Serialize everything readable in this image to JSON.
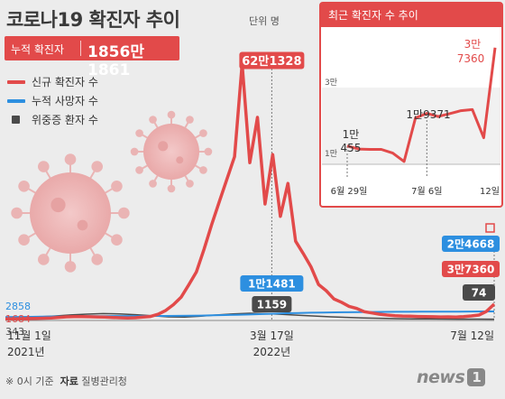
{
  "header": {
    "title": "코로나19 확진자 추이",
    "unit": "단위 명",
    "cumulative_label": "누적 확진자",
    "cumulative_value": "1856만1861"
  },
  "legend": [
    {
      "label": "신규 확진자 수",
      "color": "#e24a4a",
      "shape": "line"
    },
    {
      "label": "누적 사망자 수",
      "color": "#2d8fe0",
      "shape": "line"
    },
    {
      "label": "위중증 환자 수",
      "color": "#4a4a4a",
      "shape": "square"
    }
  ],
  "footer": {
    "note": "※ 0시 기준",
    "source_label": "자료",
    "source_value": "질병관리청"
  },
  "logo": {
    "text": "news",
    "number": "1"
  },
  "chart_data": [
    {
      "type": "line",
      "x_tick_labels": [
        {
          "line1": "11월 1일",
          "line2": "2021년"
        },
        {
          "line1": "3월 17일",
          "line2": "2022년"
        },
        {
          "line1": "7월 12일",
          "line2": ""
        }
      ],
      "start_values": [
        {
          "label": "2858",
          "series": "누적 사망자 수",
          "color": "#2d8fe0"
        },
        {
          "label": "1684",
          "series": "신규 확진자 수",
          "color": "#e24a4a"
        },
        {
          "label": "343",
          "series": "위중증 환자 수",
          "color": "#555555"
        }
      ],
      "peak_callouts": [
        {
          "label": "62만1328",
          "series": "신규 확진자 수",
          "color": "#e24a4a"
        },
        {
          "label": "1만1481",
          "series": "누적 사망자 수",
          "color": "#2d8fe0"
        },
        {
          "label": "1159",
          "series": "위중증 환자 수",
          "color": "#4a4a4a"
        }
      ],
      "end_callouts": [
        {
          "label": "2만4668",
          "series": "누적 사망자 수",
          "color": "#2d8fe0"
        },
        {
          "label": "3만7360",
          "series": "신규 확진자 수",
          "color": "#e24a4a"
        },
        {
          "label": "74",
          "series": "위중증 환자 수",
          "color": "#4a4a4a"
        }
      ],
      "series": [
        {
          "name": "신규 확진자 수",
          "color": "#e24a4a",
          "values": [
            1684,
            1600,
            1900,
            2300,
            2800,
            3200,
            4000,
            5200,
            6500,
            7000,
            7200,
            6800,
            6300,
            5800,
            5000,
            4300,
            3800,
            4400,
            5800,
            7500,
            13000,
            22000,
            36000,
            54000,
            84000,
            115000,
            170000,
            230000,
            285000,
            340000,
            395000,
            620000,
            380000,
            490000,
            280000,
            400000,
            250000,
            330000,
            190000,
            160000,
            128000,
            85000,
            70000,
            50000,
            42000,
            32000,
            27000,
            19000,
            16000,
            13000,
            11000,
            9500,
            8500,
            8000,
            7500,
            7000,
            6800,
            6300,
            6500,
            6200,
            7200,
            8800,
            11000,
            20000,
            37360
          ]
        },
        {
          "name": "누적 사망자 수",
          "color": "#2d8fe0",
          "values": [
            2858,
            3200,
            3700,
            4200,
            4800,
            5400,
            5900,
            6200,
            6400,
            6600,
            6700,
            6800,
            6900,
            7000,
            7300,
            7800,
            8500,
            9400,
            10500,
            11481,
            12800,
            14500,
            16000,
            17500,
            18600,
            19600,
            20400,
            21000,
            21600,
            22100,
            22500,
            22800,
            23100,
            23300,
            23500,
            23700,
            23900,
            24100,
            24300,
            24500,
            24668
          ]
        },
        {
          "name": "위중증 환자 수",
          "color": "#4a4a4a",
          "values": [
            343,
            420,
            500,
            640,
            850,
            1000,
            1100,
            1050,
            900,
            700,
            500,
            450,
            620,
            850,
            1050,
            1159,
            1100,
            950,
            800,
            650,
            500,
            400,
            300,
            230,
            170,
            130,
            110,
            100,
            90,
            80,
            74
          ]
        }
      ],
      "ylim": [
        0,
        621328
      ]
    },
    {
      "type": "line",
      "title": "최근 확진자 수 추이",
      "categories": [
        "6월 29일",
        "6월 30일",
        "7월 1일",
        "7월 2일",
        "7월 3일",
        "7월 4일",
        "7월 5일",
        "7월 6일",
        "7월 7일",
        "7월 8일",
        "7월 9일",
        "7월 10일",
        "7월 11일",
        "7월 12일"
      ],
      "x_tick_labels": [
        "6월 29일",
        "7월 6일",
        "12일"
      ],
      "y_tick_labels": [
        "3만",
        "1만"
      ],
      "point_labels": [
        {
          "text": "1만\n455",
          "index": 0
        },
        {
          "text": "1만9371",
          "index": 7
        },
        {
          "text": "3만\n7360",
          "index": 13
        }
      ],
      "series": [
        {
          "name": "신규 확진자 수",
          "color": "#e24a4a",
          "values": [
            10455,
            9600,
            9500,
            9500,
            8500,
            6200,
            18100,
            19371,
            18500,
            19300,
            20100,
            20400,
            12700,
            37360
          ]
        }
      ],
      "ylim": [
        0,
        42000
      ]
    }
  ]
}
